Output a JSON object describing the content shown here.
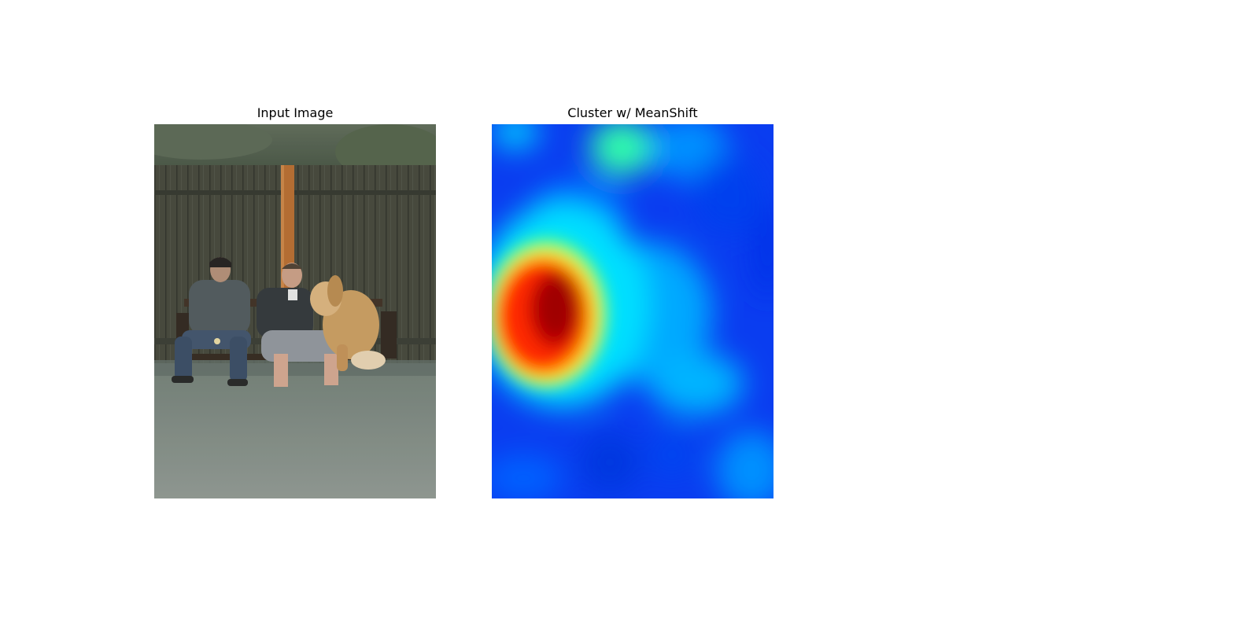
{
  "panels": {
    "input": {
      "title": "Input Image",
      "content": "photo"
    },
    "cluster": {
      "title": "Cluster w/ MeanShift",
      "content": "heatmap",
      "colormap": "jet",
      "palette": {
        "low": "#0000d8",
        "mid_low": "#0066ff",
        "mid": "#00ccff",
        "mid_high": "#33ff99",
        "high_yellow": "#ffee00",
        "high_orange": "#ff6600",
        "peak": "#a80000"
      }
    }
  },
  "colors": {
    "background": "#ffffff",
    "text": "#000000"
  }
}
